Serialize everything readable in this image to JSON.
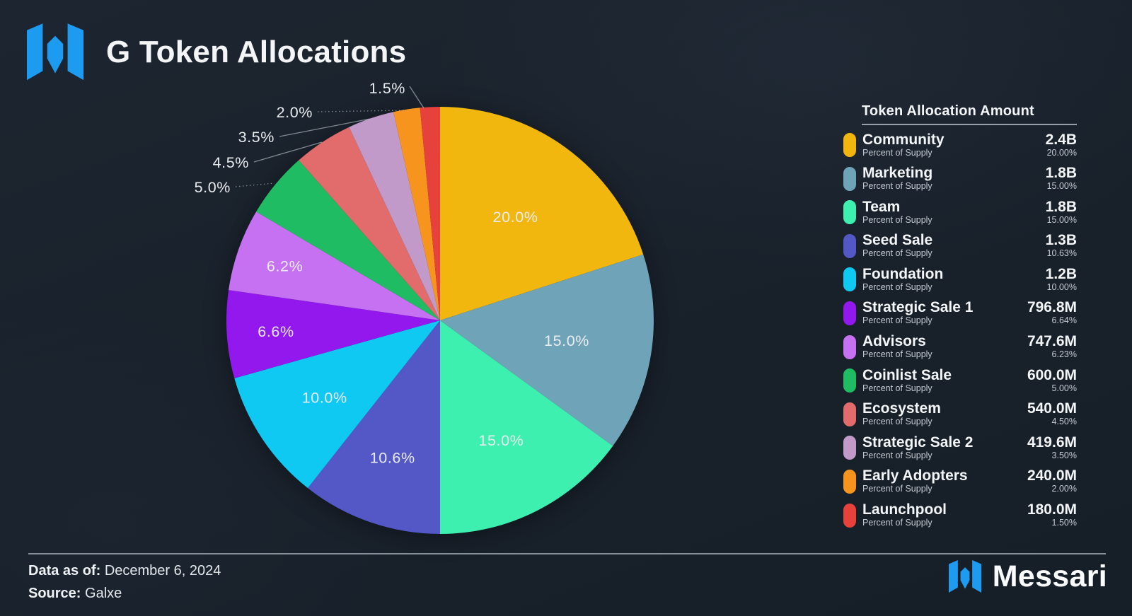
{
  "header": {
    "title": "G Token Allocations"
  },
  "legend": {
    "title": "Token Allocation Amount",
    "row_subtitle": "Percent of Supply"
  },
  "chart_data": {
    "type": "pie",
    "title": "G Token Allocations",
    "start_angle": "12-oclock",
    "direction": "clockwise",
    "series": [
      {
        "name": "Community",
        "value_pct": 20.0,
        "slice_label": "20.0%",
        "amount": "2.4B",
        "supply_pct": "20.00%",
        "color": "#F2B70E"
      },
      {
        "name": "Marketing",
        "value_pct": 15.0,
        "slice_label": "15.0%",
        "amount": "1.8B",
        "supply_pct": "15.00%",
        "color": "#6FA4B8"
      },
      {
        "name": "Team",
        "value_pct": 15.0,
        "slice_label": "15.0%",
        "amount": "1.8B",
        "supply_pct": "15.00%",
        "color": "#3DF0B0"
      },
      {
        "name": "Seed Sale",
        "value_pct": 10.63,
        "slice_label": "10.6%",
        "amount": "1.3B",
        "supply_pct": "10.63%",
        "color": "#5457C6"
      },
      {
        "name": "Foundation",
        "value_pct": 10.0,
        "slice_label": "10.0%",
        "amount": "1.2B",
        "supply_pct": "10.00%",
        "color": "#10C9F3"
      },
      {
        "name": "Strategic Sale 1",
        "value_pct": 6.64,
        "slice_label": "6.6%",
        "amount": "796.8M",
        "supply_pct": "6.64%",
        "color": "#9318EE"
      },
      {
        "name": "Advisors",
        "value_pct": 6.23,
        "slice_label": "6.2%",
        "amount": "747.6M",
        "supply_pct": "6.23%",
        "color": "#C671F1"
      },
      {
        "name": "Coinlist Sale",
        "value_pct": 5.0,
        "slice_label": "5.0%",
        "amount": "600.0M",
        "supply_pct": "5.00%",
        "color": "#1FBC64"
      },
      {
        "name": "Ecosystem",
        "value_pct": 4.5,
        "slice_label": "4.5%",
        "amount": "540.0M",
        "supply_pct": "4.50%",
        "color": "#E26C6B"
      },
      {
        "name": "Strategic Sale 2",
        "value_pct": 3.5,
        "slice_label": "3.5%",
        "amount": "419.6M",
        "supply_pct": "3.50%",
        "color": "#C19AC9"
      },
      {
        "name": "Early Adopters",
        "value_pct": 2.0,
        "slice_label": "2.0%",
        "amount": "240.0M",
        "supply_pct": "2.00%",
        "color": "#F7941E"
      },
      {
        "name": "Launchpool",
        "value_pct": 1.5,
        "slice_label": "1.5%",
        "amount": "180.0M",
        "supply_pct": "1.50%",
        "color": "#E7413C"
      }
    ]
  },
  "footer": {
    "data_as_of_label": "Data as of:",
    "data_as_of_value": "December 6, 2024",
    "source_label": "Source:",
    "source_value": "Galxe",
    "brand": "Messari"
  },
  "colors": {
    "brand_blue": "#1D9BF0",
    "background": "#19212B",
    "rule": "#96A0A9",
    "label_text": "#E9ECEF"
  }
}
